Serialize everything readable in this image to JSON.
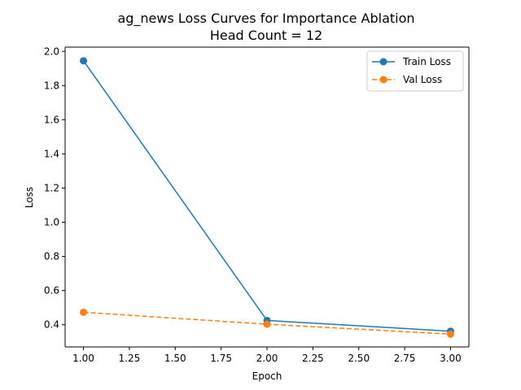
{
  "chart_data": {
    "type": "line",
    "title_line1": "ag_news Loss Curves for Importance Ablation",
    "title_line2": "Head Count = 12",
    "xlabel": "Epoch",
    "ylabel": "Loss",
    "x": [
      1.0,
      2.0,
      3.0
    ],
    "xlim": [
      0.9,
      3.1
    ],
    "ylim": [
      0.27,
      2.025
    ],
    "xticks": [
      1.0,
      1.25,
      1.5,
      1.75,
      2.0,
      2.25,
      2.5,
      2.75,
      3.0
    ],
    "xtick_labels": [
      "1.00",
      "1.25",
      "1.50",
      "1.75",
      "2.00",
      "2.25",
      "2.50",
      "2.75",
      "3.00"
    ],
    "yticks": [
      0.4,
      0.6,
      0.8,
      1.0,
      1.2,
      1.4,
      1.6,
      1.8,
      2.0
    ],
    "ytick_labels": [
      "0.4",
      "0.6",
      "0.8",
      "1.0",
      "1.2",
      "1.4",
      "1.6",
      "1.8",
      "2.0"
    ],
    "grid": false,
    "legend_position": "top-right",
    "series": [
      {
        "name": "Train Loss",
        "values": [
          1.945,
          0.425,
          0.362
        ],
        "color": "#1f77b4",
        "style": "solid",
        "marker": "circle"
      },
      {
        "name": "Val Loss",
        "values": [
          0.473,
          0.403,
          0.345
        ],
        "color": "#ff7f0e",
        "style": "dashed",
        "marker": "circle"
      }
    ]
  }
}
